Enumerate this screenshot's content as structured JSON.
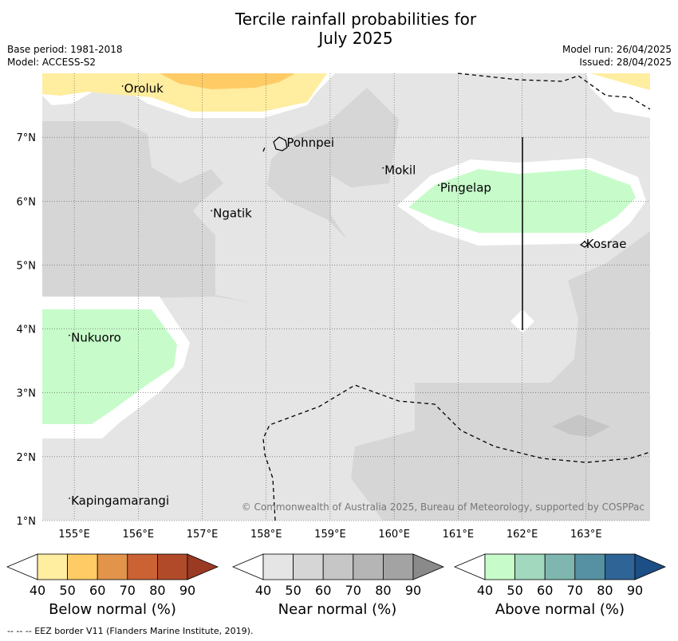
{
  "title_line1": "Tercile rainfall probabilities for",
  "title_line2": "July 2025",
  "base_period": "Base period: 1981-2018",
  "model": "Model: ACCESS-S2",
  "model_run": "Model run: 26/04/2025",
  "issued": "Issued: 28/04/2025",
  "copyright": "© Commonwealth of Australia 2025, Bureau of Meteorology, supported by COSPPac",
  "footnote": "--  --  -- EEZ border V11 (Flanders Marine Institute, 2019).",
  "map": {
    "lon_range": [
      154.5,
      164.0
    ],
    "lat_range": [
      1.0,
      8.0
    ],
    "x_ticks": [
      "155°E",
      "156°E",
      "157°E",
      "158°E",
      "159°E",
      "160°E",
      "161°E",
      "162°E",
      "163°E"
    ],
    "x_tick_values": [
      155,
      156,
      157,
      158,
      159,
      160,
      161,
      162,
      163
    ],
    "y_ticks": [
      "1°N",
      "2°N",
      "3°N",
      "4°N",
      "5°N",
      "6°N",
      "7°N"
    ],
    "y_tick_values": [
      1,
      2,
      3,
      4,
      5,
      6,
      7
    ],
    "grid": true,
    "places": [
      {
        "name": "Oroluk",
        "lon": 155.78,
        "lat": 7.7
      },
      {
        "name": "Pohnpei",
        "lon": 158.32,
        "lat": 6.85
      },
      {
        "name": "Mokil",
        "lon": 159.85,
        "lat": 6.42
      },
      {
        "name": "Pingelap",
        "lon": 160.72,
        "lat": 6.15
      },
      {
        "name": "Ngatik",
        "lon": 157.17,
        "lat": 5.75
      },
      {
        "name": "Kosrae",
        "lon": 163.0,
        "lat": 5.27
      },
      {
        "name": "Nukuoro",
        "lon": 154.95,
        "lat": 3.8
      },
      {
        "name": "Kapingamarangi",
        "lon": 154.95,
        "lat": 1.25
      }
    ]
  },
  "colorbars": [
    {
      "label": "Below normal (%)",
      "ticks": [
        "40",
        "50",
        "60",
        "70",
        "80",
        "90"
      ],
      "colors": [
        "#ffffff",
        "#ffeda0",
        "#fecb65",
        "#e2944a",
        "#cb6234",
        "#b04a29",
        "#9a3a22"
      ]
    },
    {
      "label": "Near normal (%)",
      "ticks": [
        "40",
        "50",
        "60",
        "70",
        "80",
        "90"
      ],
      "colors": [
        "#ffffff",
        "#e5e5e5",
        "#d6d6d6",
        "#c6c6c6",
        "#b5b5b5",
        "#a3a3a3",
        "#8a8a8a"
      ]
    },
    {
      "label": "Above normal (%)",
      "ticks": [
        "40",
        "50",
        "60",
        "70",
        "80",
        "90"
      ],
      "colors": [
        "#ffffff",
        "#c7fcca",
        "#a1d8be",
        "#7fb6b0",
        "#5591a3",
        "#2f6496",
        "#1c4f86"
      ]
    }
  ]
}
